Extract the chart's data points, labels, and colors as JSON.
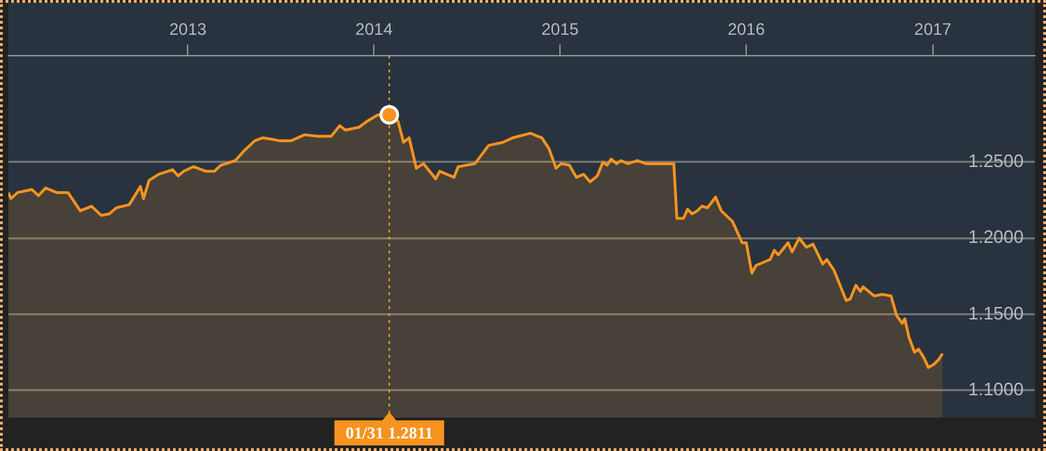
{
  "chart_data": {
    "type": "area",
    "x": [
      "2012-01-15",
      "2012-01-20",
      "2012-02-02",
      "2012-03-01",
      "2012-03-14",
      "2012-03-28",
      "2012-04-19",
      "2012-05-11",
      "2012-06-04",
      "2012-06-26",
      "2012-07-15",
      "2012-07-31",
      "2012-08-14",
      "2012-09-08",
      "2012-09-30",
      "2012-10-06",
      "2012-10-17",
      "2012-11-05",
      "2012-12-02",
      "2012-12-13",
      "2012-12-24",
      "2013-01-12",
      "2013-02-05",
      "2013-02-22",
      "2013-03-07",
      "2013-04-04",
      "2013-04-23",
      "2013-05-12",
      "2013-05-28",
      "2013-06-16",
      "2013-06-30",
      "2013-07-22",
      "2013-08-18",
      "2013-09-12",
      "2013-10-09",
      "2013-10-26",
      "2013-11-06",
      "2013-12-03",
      "2013-12-19",
      "2014-01-08",
      "2014-01-31",
      "2014-02-17",
      "2014-02-28",
      "2014-03-11",
      "2014-03-25",
      "2014-04-08",
      "2014-05-02",
      "2014-05-10",
      "2014-06-07",
      "2014-06-15",
      "2014-07-18",
      "2014-08-14",
      "2014-09-11",
      "2014-09-30",
      "2014-11-04",
      "2014-11-18",
      "2014-11-26",
      "2014-12-10",
      "2014-12-24",
      "2015-01-03",
      "2015-01-19",
      "2015-02-02",
      "2015-02-16",
      "2015-03-01",
      "2015-03-15",
      "2015-03-26",
      "2015-04-03",
      "2015-04-11",
      "2015-04-22",
      "2015-04-30",
      "2015-05-14",
      "2015-06-02",
      "2015-06-18",
      "2015-07-07",
      "2015-08-12",
      "2015-08-18",
      "2015-08-31",
      "2015-09-08",
      "2015-09-17",
      "2015-09-27",
      "2015-10-06",
      "2015-10-17",
      "2015-11-02",
      "2015-11-13",
      "2015-12-05",
      "2015-12-24",
      "2016-01-01",
      "2016-01-12",
      "2016-01-20",
      "2016-02-17",
      "2016-02-25",
      "2016-03-04",
      "2016-03-23",
      "2016-03-31",
      "2016-04-14",
      "2016-04-28",
      "2016-05-11",
      "2016-05-30",
      "2016-06-07",
      "2016-06-21",
      "2016-07-15",
      "2016-07-23",
      "2016-08-03",
      "2016-08-12",
      "2016-08-17",
      "2016-09-08",
      "2016-09-24",
      "2016-10-11",
      "2016-10-22",
      "2016-11-02",
      "2016-11-07",
      "2016-11-15",
      "2016-11-26",
      "2016-12-04",
      "2016-12-15",
      "2016-12-23",
      "2017-01-03",
      "2017-01-12",
      "2017-01-20"
    ],
    "series": [
      {
        "color": "#f7931e",
        "values": [
          1.23,
          1.226,
          1.23,
          1.232,
          1.228,
          1.233,
          1.23,
          1.23,
          1.218,
          1.221,
          1.215,
          1.216,
          1.22,
          1.222,
          1.234,
          1.226,
          1.238,
          1.242,
          1.245,
          1.241,
          1.244,
          1.247,
          1.244,
          1.244,
          1.248,
          1.251,
          1.258,
          1.264,
          1.266,
          1.265,
          1.264,
          1.264,
          1.268,
          1.267,
          1.267,
          1.274,
          1.271,
          1.273,
          1.277,
          1.281,
          1.2811,
          1.277,
          1.263,
          1.266,
          1.246,
          1.249,
          1.239,
          1.244,
          1.24,
          1.247,
          1.249,
          1.261,
          1.263,
          1.266,
          1.269,
          1.267,
          1.266,
          1.259,
          1.246,
          1.249,
          1.248,
          1.24,
          1.242,
          1.237,
          1.241,
          1.25,
          1.248,
          1.252,
          1.249,
          1.251,
          1.249,
          1.251,
          1.249,
          1.249,
          1.249,
          1.213,
          1.213,
          1.219,
          1.216,
          1.218,
          1.221,
          1.22,
          1.227,
          1.218,
          1.211,
          1.197,
          1.197,
          1.177,
          1.182,
          1.186,
          1.192,
          1.189,
          1.197,
          1.191,
          1.2,
          1.194,
          1.196,
          1.183,
          1.186,
          1.179,
          1.159,
          1.16,
          1.169,
          1.165,
          1.168,
          1.162,
          1.163,
          1.162,
          1.149,
          1.144,
          1.147,
          1.135,
          1.125,
          1.127,
          1.121,
          1.115,
          1.117,
          1.12,
          1.124
        ]
      }
    ],
    "xlim": [
      "2012-01-15",
      "2017-07-20"
    ],
    "xticks": [
      "2013",
      "2014",
      "2015",
      "2016",
      "2017"
    ],
    "ylim": [
      1.082,
      1.32
    ],
    "yticks": [
      {
        "value": 1.1,
        "label": "1.1000"
      },
      {
        "value": 1.15,
        "label": "1.1500"
      },
      {
        "value": 1.2,
        "label": "1.2000"
      },
      {
        "value": 1.25,
        "label": "1.2500"
      }
    ],
    "grid": "y",
    "marker": "none",
    "ref_lines": [
      {
        "axis": "x",
        "value": "2014-01-31",
        "color": "#f0a030",
        "line_style": "dotted"
      }
    ],
    "annotations": [
      "01/31 1.2811"
    ]
  }
}
